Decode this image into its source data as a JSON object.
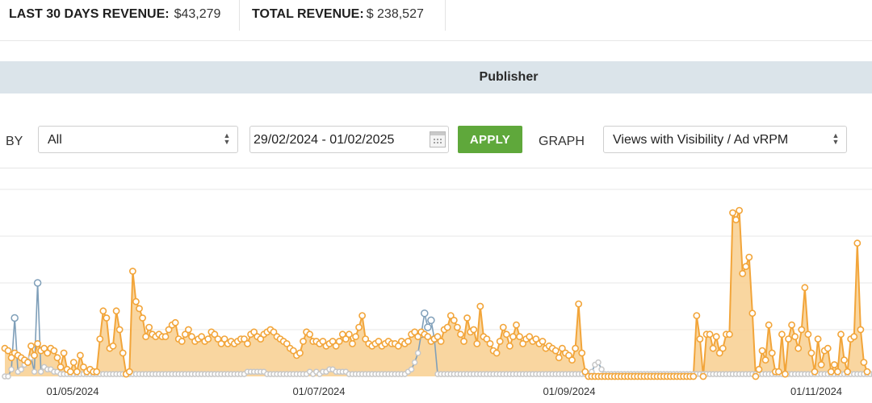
{
  "stats": {
    "last30_label": "LAST 30 DAYS REVENUE:",
    "last30_value": "$43,279",
    "total_label": "TOTAL REVENUE:",
    "total_value": "$ 238,527"
  },
  "header": {
    "title": "Publisher"
  },
  "filters": {
    "by_label": "BY",
    "by_value": "All",
    "date_range": "29/02/2024 - 01/02/2025",
    "apply_label": "APPLY",
    "graph_label": "GRAPH",
    "graph_value": "Views with Visibility / Ad vRPM"
  },
  "colors": {
    "orange": "#f2a53a",
    "orange_fill": "#f8cf8f",
    "blue": "#7f9fb9",
    "gray": "#c7c7c7",
    "apply": "#5fa83b"
  },
  "chart_data": {
    "type": "area",
    "x_ticks": [
      "01/05/2024",
      "01/07/2024",
      "01/09/2024",
      "01/11/2024"
    ],
    "y_range": [
      0,
      5
    ],
    "grid": true,
    "series": [
      {
        "values": [
          0.6,
          0.55,
          0.4,
          0.5,
          0.45,
          0.4,
          0.35,
          0.3,
          0.65,
          0.45,
          0.7,
          0.55,
          0.6,
          0.5,
          0.6,
          0.55,
          0.4,
          0.2,
          0.5,
          0.15,
          0.1,
          0.3,
          0.1,
          0.45,
          0.2,
          0.1,
          0.15,
          0.1,
          0.1,
          0.8,
          1.4,
          1.25,
          0.6,
          0.65,
          1.4,
          1.0,
          0.5,
          0.05,
          0.1,
          2.25,
          1.6,
          1.45,
          1.25,
          0.85,
          1.05,
          0.9,
          0.85,
          0.9,
          0.85,
          0.85,
          1.0,
          1.1,
          1.15,
          0.8,
          0.75,
          0.9,
          1.0,
          0.85,
          0.75,
          0.8,
          0.85,
          0.75,
          0.8,
          0.95,
          0.9,
          0.8,
          0.7,
          0.8,
          0.7,
          0.75,
          0.7,
          0.75,
          0.8,
          0.8,
          0.7,
          0.9,
          0.95,
          0.85,
          0.8,
          0.9,
          0.95,
          1.0,
          0.95,
          0.85,
          0.8,
          0.75,
          0.7,
          0.6,
          0.55,
          0.45,
          0.5,
          0.75,
          0.95,
          0.9,
          0.75,
          0.75,
          0.7,
          0.75,
          0.65,
          0.7,
          0.75,
          0.65,
          0.75,
          0.9,
          0.8,
          0.9,
          0.7,
          0.85,
          1.05,
          1.3,
          0.8,
          0.7,
          0.65,
          0.7,
          0.75,
          0.65,
          0.7,
          0.75,
          0.7,
          0.7,
          0.65,
          0.75,
          0.7,
          0.75,
          0.9,
          0.95,
          0.85,
          0.95,
          0.9,
          0.85,
          0.75,
          0.8,
          0.85,
          0.75,
          1.0,
          1.05,
          1.3,
          1.2,
          1.05,
          0.9,
          0.75,
          1.25,
          0.95,
          1.0,
          0.7,
          1.5,
          0.85,
          0.8,
          0.7,
          0.55,
          0.5,
          0.75,
          1.05,
          0.9,
          0.65,
          0.85,
          1.1,
          0.85,
          0.7,
          0.8,
          0.85,
          0.75,
          0.8,
          0.7,
          0.75,
          0.6,
          0.65,
          0.6,
          0.55,
          0.4,
          0.6,
          0.5,
          0.45,
          0.35,
          0.6,
          1.55,
          0.5,
          0.1,
          0,
          0,
          0,
          0,
          0,
          0,
          0,
          0,
          0,
          0,
          0,
          0,
          0,
          0,
          0,
          0,
          0,
          0,
          0,
          0,
          0,
          0,
          0,
          0,
          0,
          0,
          0,
          0,
          0,
          0,
          0,
          0,
          0,
          1.3,
          0.8,
          0,
          0.9,
          0.9,
          0.6,
          0.85,
          0.5,
          0.6,
          0.9,
          0.9,
          3.5,
          3.35,
          3.55,
          2.2,
          2.35,
          2.55,
          1.35,
          0,
          0.15,
          0.55,
          0.35,
          1.1,
          0.5,
          0.1,
          0.1,
          0.9,
          0.05,
          0.8,
          1.1,
          0.85,
          0.6,
          1.0,
          1.9,
          0.9,
          0.5,
          0.1,
          0.8,
          0.25,
          0.55,
          0.6,
          0.1,
          0.25,
          0.1,
          0.9,
          0.35,
          0.1,
          0.8,
          0.85,
          2.85,
          1.0,
          0.3,
          0.1
        ],
        "style": "orange-area"
      },
      {
        "values": [
          0,
          0,
          0.15,
          1.25,
          0.1,
          0.15,
          0.25,
          0.3,
          0.4,
          0.1,
          2.0,
          0.1,
          0.2,
          0.15,
          0.15,
          0.1,
          0.1,
          0.05,
          0.05,
          0.05,
          0.05,
          0.05,
          0.05,
          0.05,
          0.05,
          0.05,
          0.05,
          0.05,
          0.05,
          0.05,
          0.05,
          0.05,
          0.05,
          0.05,
          0.05,
          0.05,
          0.05,
          0.05,
          0.05,
          0.05,
          0.05,
          0.05,
          0.05,
          0.05,
          0.05,
          0.05,
          0.05,
          0.05,
          0.05,
          0.05,
          0.05,
          0.05,
          0.05,
          0.05,
          0.05,
          0.05,
          0.05,
          0.05,
          0.05,
          0.05,
          0.05,
          0.05,
          0.05,
          0.05,
          0.05,
          0.05,
          0.05,
          0.05,
          0.05,
          0.05,
          0.05,
          0.05,
          0.05,
          0.05,
          0.1,
          0.1,
          0.1,
          0.1,
          0.1,
          0.1,
          0.05,
          0.05,
          0.05,
          0.05,
          0.05,
          0.05,
          0.05,
          0.05,
          0.05,
          0.05,
          0.05,
          0.05,
          0.05,
          0.1,
          0.05,
          0.1,
          0.05,
          0.1,
          0.1,
          0.15,
          0.15,
          0.1,
          0.1,
          0.1,
          0.1,
          0.05,
          0.05,
          0.05,
          0.05,
          0.05,
          0.05,
          0.05,
          0.05,
          0.05,
          0.05,
          0.05,
          0.05,
          0.05,
          0.05,
          0.05,
          0.05,
          0.05,
          0.05,
          0.1,
          0.15,
          0.3,
          0.5,
          0.9,
          1.35,
          1.05,
          1.2,
          0.8,
          0.05,
          0.05,
          0.05,
          0.05,
          0.05,
          0.05,
          0.05,
          0.05,
          0.05,
          0.05,
          0.05,
          0.05,
          0.05,
          0.05,
          0.05,
          0.05,
          0.05,
          0.05,
          0.05,
          0.05,
          0.05,
          0.05,
          0.05,
          0.05,
          0.05,
          0.05,
          0.05,
          0.05,
          0.05,
          0.05,
          0.05,
          0.05,
          0.05,
          0.05,
          0.05,
          0.05,
          0.05,
          0.05,
          0.05,
          0.05,
          0.05,
          0.05,
          0.05,
          0.05,
          0.05,
          0.05,
          0.05,
          0.1,
          0.25,
          0.3,
          0.15,
          0.05,
          0.05,
          0.05,
          0.05,
          0.05,
          0.05,
          0.05,
          0.05,
          0.05,
          0.05,
          0.05,
          0.05,
          0.05,
          0.05,
          0.05,
          0.05,
          0.05,
          0.05,
          0.05,
          0.05,
          0.05,
          0.05,
          0.05,
          0.05,
          0.05,
          0.05,
          0.05,
          0.05,
          0.05,
          0.05,
          0.05,
          0.05,
          0.05,
          0.05,
          0.05,
          0.05,
          0.05,
          0.05,
          0.05,
          0.05,
          0.05,
          0.05,
          0.05,
          0.05,
          0.05,
          0.05,
          0.05,
          0.05,
          0.05,
          0.05,
          0.05,
          0.05,
          0.05,
          0.05,
          0.05,
          0.05,
          0.05,
          0.05,
          0.05,
          0.05,
          0.05,
          0.05,
          0.05,
          0.05,
          0.05,
          0.05,
          0.05,
          0.05,
          0.05,
          0.05,
          0.05,
          0.05,
          0.05,
          0.05,
          0.05,
          0.05,
          0.05,
          0.05,
          0.05,
          0.05,
          0.05,
          0.05,
          0.05,
          0.05,
          0.05,
          0.05,
          0.05
        ],
        "style": "blue-gray-line"
      }
    ]
  }
}
